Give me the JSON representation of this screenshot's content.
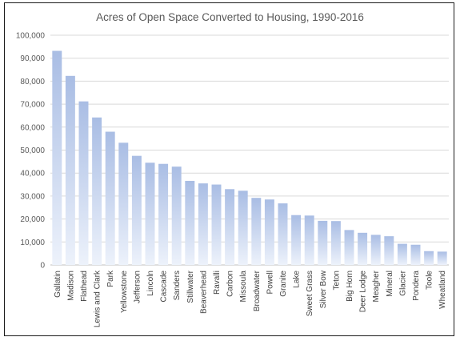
{
  "chart_data": {
    "type": "bar",
    "title": "Acres of Open Space Converted to Housing, 1990-2016",
    "xlabel": "",
    "ylabel": "",
    "ylim": [
      0,
      100000
    ],
    "yticks": [
      "0",
      "10,000",
      "20,000",
      "30,000",
      "40,000",
      "50,000",
      "60,000",
      "70,000",
      "80,000",
      "90,000",
      "100,000"
    ],
    "grid": true,
    "legend": "none",
    "bar_color_top": "#a9bde4",
    "bar_color_bottom": "#edf2fb",
    "categories": [
      "Gallatin",
      "Madison",
      "Flathead",
      "Lewis and Clark",
      "Park",
      "Yellowstone",
      "Jefferson",
      "Lincoln",
      "Cascade",
      "Sanders",
      "Stillwater",
      "Beaverhead",
      "Ravalli",
      "Carbon",
      "Missoula",
      "Broadwater",
      "Powell",
      "Granite",
      "Lake",
      "Sweet Grass",
      "Silver Bow",
      "Teton",
      "Big Horn",
      "Deer Lodge",
      "Meagher",
      "Mineral",
      "Glacier",
      "Pondera",
      "Toole",
      "Wheatland"
    ],
    "values": [
      93200,
      82300,
      71200,
      64200,
      58000,
      53200,
      47500,
      44500,
      44000,
      42800,
      36600,
      35500,
      35000,
      33000,
      32300,
      29200,
      28500,
      26800,
      21700,
      21500,
      19200,
      19100,
      15200,
      14000,
      13100,
      12500,
      9200,
      8800,
      6000,
      5800
    ]
  }
}
